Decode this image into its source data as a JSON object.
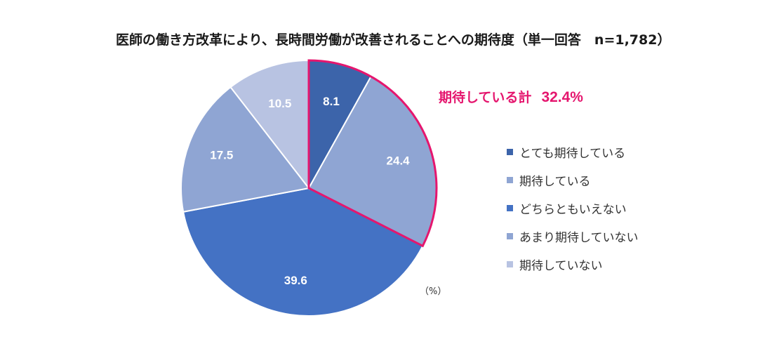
{
  "chart_data": {
    "type": "pie",
    "title": "医師の働き方改革により、長時間労働が改善されることへの期待度（単一回答　n=1,782）",
    "unit": "（%）",
    "slices": [
      {
        "label": "とても期待している",
        "value": 8.1,
        "display": "8.1",
        "color": "#3c64aa"
      },
      {
        "label": "期待している",
        "value": 24.4,
        "display": "24.4",
        "color": "#8fa5d3"
      },
      {
        "label": "どちらともいえない",
        "value": 39.6,
        "display": "39.6",
        "color": "#4472c4"
      },
      {
        "label": "あまり期待していない",
        "value": 17.5,
        "display": "17.5",
        "color": "#8fa5d3"
      },
      {
        "label": "期待していない",
        "value": 10.5,
        "display": "10.5",
        "color": "#b8c3e2"
      }
    ],
    "highlight": {
      "text": "期待している計",
      "value": "32.4%",
      "slices": [
        0,
        1
      ],
      "color": "#e5166e"
    }
  }
}
